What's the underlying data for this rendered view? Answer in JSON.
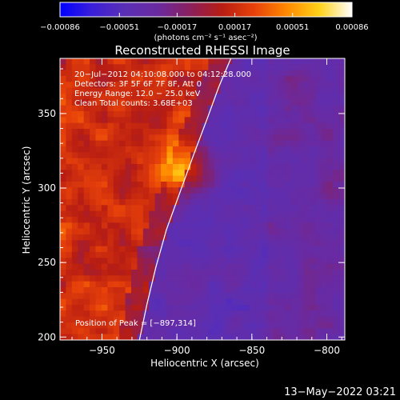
{
  "chart_data": {
    "type": "heatmap",
    "title": "Reconstructed RHESSI Image",
    "xlabel": "Heliocentric X (arcsec)",
    "ylabel": "Heliocentric Y (arcsec)",
    "xlim": [
      -978,
      -788
    ],
    "ylim": [
      198,
      387
    ],
    "x_ticks": [
      {
        "value": -950,
        "label": "−950"
      },
      {
        "value": -900,
        "label": "−900"
      },
      {
        "value": -850,
        "label": "−850"
      },
      {
        "value": -800,
        "label": "−800"
      }
    ],
    "y_ticks": [
      {
        "value": 200,
        "label": "200"
      },
      {
        "value": 250,
        "label": "250"
      },
      {
        "value": 300,
        "label": "300"
      },
      {
        "value": 350,
        "label": "350"
      }
    ],
    "colorbar": {
      "range": [
        -0.00086,
        0.00086
      ],
      "ticks": [
        {
          "value": -0.00086,
          "label": "−0.00086"
        },
        {
          "value": -0.00051,
          "label": "−0.00051"
        },
        {
          "value": -0.00017,
          "label": "−0.00017"
        },
        {
          "value": 0.00017,
          "label": "0.00017"
        },
        {
          "value": 0.00051,
          "label": "0.00051"
        },
        {
          "value": 0.00086,
          "label": "0.00086"
        }
      ],
      "unit_label": "(photons cm⁻² s⁻¹ asec⁻²)",
      "colormap": [
        "#0000ff",
        "#3b1fd8",
        "#5a2fb4",
        "#6a2aa0",
        "#8a1f5e",
        "#b81d12",
        "#e8420a",
        "#ff8a00",
        "#ffd21a",
        "#ffffff"
      ]
    },
    "annotations": [
      "20−Jul−2012 04:10:08.000 to 04:12:28.000",
      "Detectors: 3F 5F 6F 7F 8F, Att 0",
      "Energy Range: 12.0 − 25.0 keV",
      "Clean     Total counts: 3.68E+03"
    ],
    "peak_label": "Position of Peak = [−897,314]",
    "peak": [
      -897,
      314
    ],
    "limb_curve": {
      "x": [
        -925,
        -920,
        -914,
        -907,
        -898,
        -889,
        -880,
        -872,
        -864
      ],
      "y": [
        198,
        222,
        247,
        272,
        297,
        322,
        346,
        368,
        387
      ]
    },
    "grid": false
  },
  "timestamp": "13−May−2022 03:21"
}
